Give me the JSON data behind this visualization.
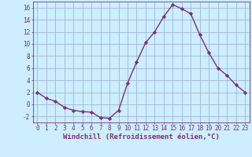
{
  "x": [
    0,
    1,
    2,
    3,
    4,
    5,
    6,
    7,
    8,
    9,
    10,
    11,
    12,
    13,
    14,
    15,
    16,
    17,
    18,
    19,
    20,
    21,
    22,
    23
  ],
  "y": [
    2,
    1,
    0.5,
    -0.5,
    -1,
    -1.2,
    -1.3,
    -2.2,
    -2.3,
    -1.0,
    3.5,
    7,
    10.2,
    12,
    14.5,
    16.5,
    15.8,
    15.0,
    11.5,
    8.5,
    6.0,
    4.8,
    3.2,
    2.0
  ],
  "line_color": "#7b2f7b",
  "marker": "D",
  "marker_size": 2.2,
  "bg_color": "#cceeff",
  "grid_color": "#99aacc",
  "xlabel": "Windchill (Refroidissement éolien,°C)",
  "xlim": [
    -0.5,
    23.5
  ],
  "ylim": [
    -3,
    17
  ],
  "yticks": [
    -2,
    0,
    2,
    4,
    6,
    8,
    10,
    12,
    14,
    16
  ],
  "xticks": [
    0,
    1,
    2,
    3,
    4,
    5,
    6,
    7,
    8,
    9,
    10,
    11,
    12,
    13,
    14,
    15,
    16,
    17,
    18,
    19,
    20,
    21,
    22,
    23
  ],
  "xlabel_fontsize": 6.5,
  "tick_fontsize": 5.5,
  "line_width": 1.0
}
